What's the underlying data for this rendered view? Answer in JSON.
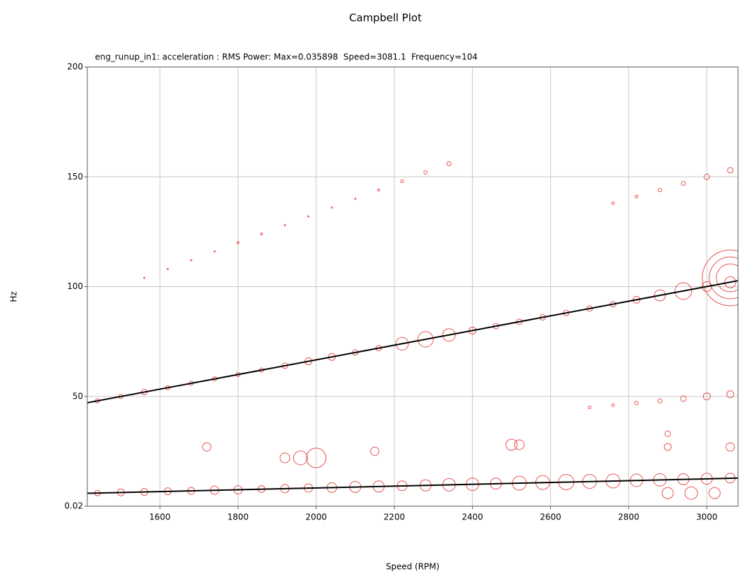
{
  "chart_data": {
    "type": "scatter",
    "title": "Campbell Plot",
    "subtitle": "eng_runup_in1: acceleration : RMS Power: Max=0.035898  Speed=3081.1  Frequency=104",
    "x_label": "Speed (RPM)",
    "y_label": "Hz",
    "xlim": [
      1414,
      3080
    ],
    "xticks": [
      1600,
      1800,
      2000,
      2200,
      2400,
      2600,
      2800,
      3000
    ],
    "ylim": [
      0.02,
      200
    ],
    "yticks": [
      0.02,
      50,
      100,
      150,
      200
    ],
    "grid": true,
    "color": "#e8534f",
    "x": [
      1440,
      1500,
      1560,
      1620,
      1680,
      1740,
      1800,
      1860,
      1920,
      1980,
      2040,
      2100,
      2160,
      2220,
      2280,
      2340,
      2400,
      2460,
      2520,
      2580,
      2640,
      2700,
      2760,
      2820,
      2880,
      2940,
      3000,
      3060,
      1560,
      1620,
      1680,
      1740,
      1800,
      1860,
      1920,
      1980,
      2040,
      2100,
      2160,
      2220,
      2280,
      2340,
      2760,
      2820,
      2880,
      2940,
      3000,
      3060,
      2700,
      2760,
      2820,
      2880,
      2940,
      3000,
      3060,
      1440,
      1500,
      1560,
      1620,
      1680,
      1740,
      1800,
      1860,
      1920,
      1980,
      2040,
      2100,
      2160,
      2220,
      2280,
      2340,
      2400,
      2460,
      2520,
      2580,
      2640,
      2700,
      2760,
      2820,
      2880,
      2940,
      3000,
      3060,
      1720,
      1960,
      2000,
      1920,
      2150,
      2500,
      2520,
      2900,
      3060,
      2900,
      2900,
      2960,
      3020,
      3060,
      3060,
      3060
    ],
    "values": [
      48,
      50,
      52,
      54,
      56,
      58,
      60,
      62,
      64,
      66,
      68,
      70,
      72,
      74,
      76,
      78,
      80,
      82,
      84,
      86,
      88,
      90,
      92,
      94,
      96,
      98,
      100,
      102,
      104,
      108,
      112,
      116,
      120,
      124,
      128,
      132,
      136,
      140,
      144,
      148,
      152,
      156,
      138,
      141,
      144,
      147,
      150,
      153,
      45,
      46,
      47,
      48,
      49,
      50,
      51,
      6,
      6.3,
      6.5,
      6.8,
      7,
      7.3,
      7.5,
      7.8,
      8,
      8.3,
      8.5,
      8.8,
      9,
      9.3,
      9.5,
      9.8,
      10,
      10.3,
      10.5,
      10.8,
      11,
      11.3,
      11.5,
      11.8,
      12,
      12.3,
      12.5,
      12.8,
      27,
      22,
      22,
      22,
      25,
      28,
      28,
      27,
      27,
      33,
      6,
      6,
      6,
      104,
      104,
      104
    ],
    "sizes": [
      3,
      3,
      4,
      3,
      3,
      3,
      3,
      3,
      4,
      5,
      5,
      4,
      4,
      9,
      11,
      9,
      5,
      4,
      4,
      4,
      4,
      4,
      4,
      5,
      8,
      12,
      7,
      8,
      1,
      1,
      1,
      1,
      1.5,
      1.5,
      1,
      1,
      1,
      1,
      1.5,
      2,
      2.5,
      3,
      2,
      2,
      2.5,
      3,
      4,
      4,
      2,
      2,
      2.5,
      3,
      4,
      5,
      5,
      4,
      5,
      5,
      5,
      5,
      6,
      6,
      5,
      6,
      6,
      7,
      8,
      8,
      7,
      8,
      9,
      9,
      8,
      10,
      10,
      11,
      10,
      10,
      9,
      9,
      8,
      8,
      7,
      6,
      10,
      14,
      7,
      6,
      8,
      7,
      5,
      6,
      4,
      8,
      9,
      8,
      40,
      30,
      20
    ],
    "lines": {
      "color": "#000000",
      "x": [
        1414,
        3080
      ],
      "series": [
        {
          "values": [
            47.1,
            102.7
          ]
        },
        {
          "values": [
            5.9,
            12.8
          ]
        }
      ]
    }
  }
}
